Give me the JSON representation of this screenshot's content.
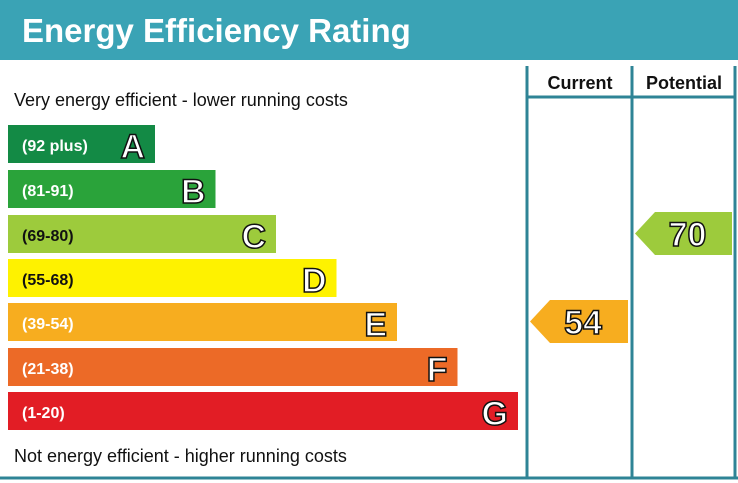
{
  "title": "Energy Efficiency Rating",
  "colors": {
    "header": "#3aa3b5",
    "frame": "#2f8496"
  },
  "chart_data": {
    "type": "bar",
    "title": "Energy Efficiency Rating",
    "top_note": "Very energy efficient - lower running costs",
    "bottom_note": "Not energy efficient - higher running costs",
    "columns": [
      "Current",
      "Potential"
    ],
    "bands": [
      {
        "letter": "A",
        "range": "(92 plus)",
        "color": "#138a45"
      },
      {
        "letter": "B",
        "range": "(81-91)",
        "color": "#2aa33a"
      },
      {
        "letter": "C",
        "range": "(69-80)",
        "color": "#9dcb3c"
      },
      {
        "letter": "D",
        "range": "(55-68)",
        "color": "#fef200"
      },
      {
        "letter": "E",
        "range": "(39-54)",
        "color": "#f7ad1f"
      },
      {
        "letter": "F",
        "range": "(21-38)",
        "color": "#ec6a27"
      },
      {
        "letter": "G",
        "range": "(1-20)",
        "color": "#e21d25"
      }
    ],
    "current": {
      "value": 54,
      "band": "E",
      "color": "#f7ad1f"
    },
    "potential": {
      "value": 70,
      "band": "C",
      "color": "#9dcb3c"
    }
  }
}
